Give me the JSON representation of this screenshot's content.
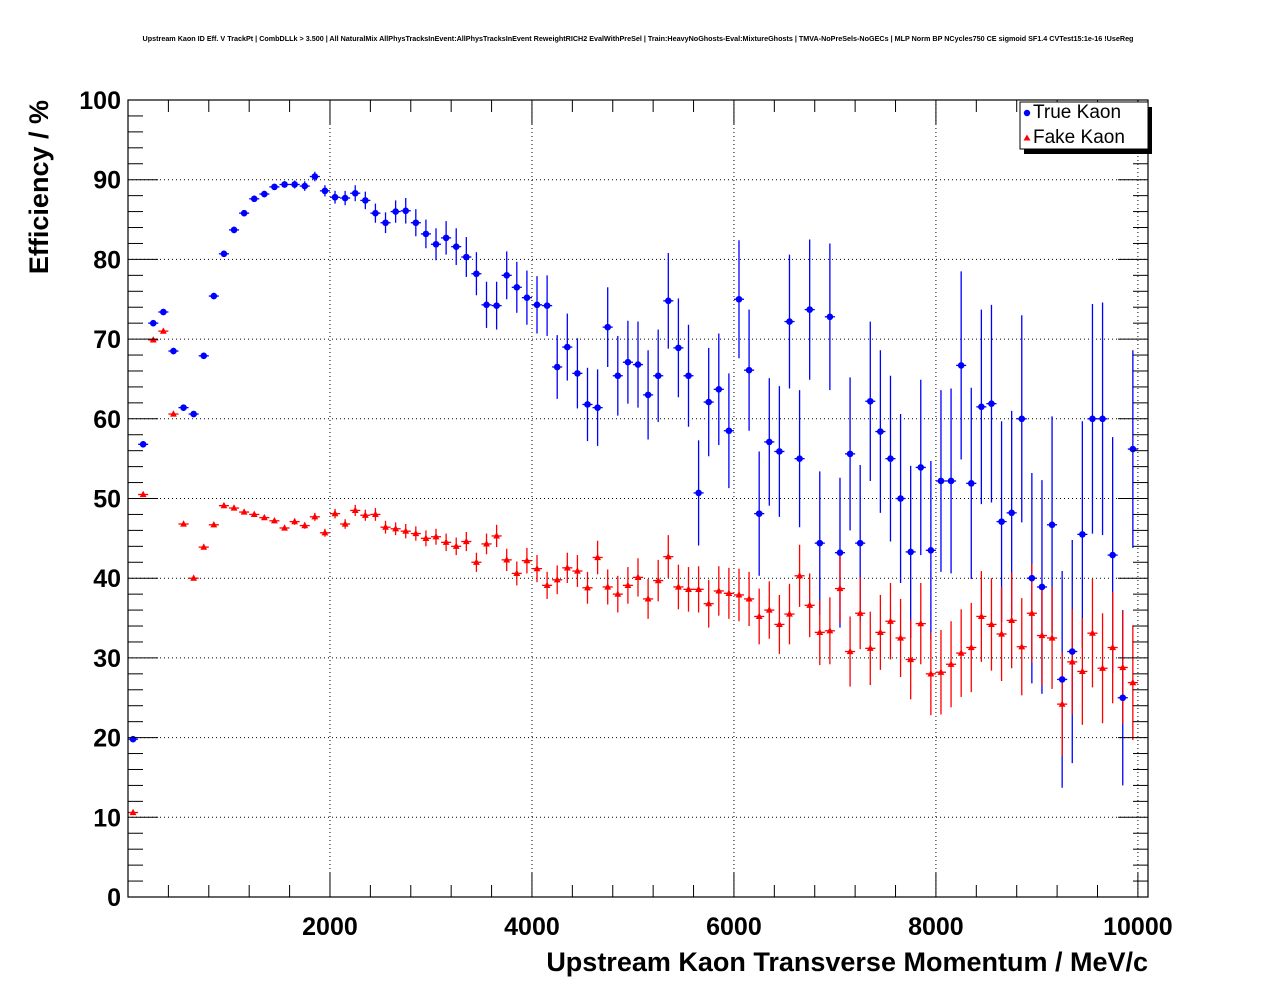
{
  "chart_data": {
    "type": "scatter",
    "title": "Upstream Kaon ID Eff. V TrackPt | CombDLLk > 3.500 | All NaturalMix AllPhysTracksInEvent:AllPhysTracksInEvent ReweightRICH2 EvalWithPreSel | Train:HeavyNoGhosts-Eval:MixtureGhosts | TMVA-NoPreSels-NoGECs | MLP Norm BP NCycles750 CE sigmoid SF1.4 CVTest15:1e-16 !UseReg",
    "xlabel": "Upstream Kaon Transverse Momentum / MeV/c",
    "ylabel": "Efficiency / %",
    "xlim": [
      0,
      10100
    ],
    "ylim": [
      0,
      100
    ],
    "x_ticks": [
      2000,
      4000,
      6000,
      8000,
      10000
    ],
    "y_ticks": [
      0,
      10,
      20,
      30,
      40,
      50,
      60,
      70,
      80,
      90,
      100
    ],
    "grid": true,
    "legend_position": "top-right",
    "series": [
      {
        "name": "True Kaon",
        "color": "#0000ff",
        "marker": "circle",
        "points": [
          [
            50,
            19.8,
            0.3
          ],
          [
            150,
            56.8,
            0.4
          ],
          [
            250,
            72.0,
            0.4
          ],
          [
            350,
            73.4,
            0.4
          ],
          [
            450,
            68.5,
            0.4
          ],
          [
            550,
            61.4,
            0.4
          ],
          [
            650,
            60.6,
            0.4
          ],
          [
            750,
            67.9,
            0.4
          ],
          [
            850,
            75.4,
            0.4
          ],
          [
            950,
            80.7,
            0.4
          ],
          [
            1050,
            83.7,
            0.4
          ],
          [
            1150,
            85.8,
            0.4
          ],
          [
            1250,
            87.6,
            0.4
          ],
          [
            1350,
            88.2,
            0.4
          ],
          [
            1450,
            89.1,
            0.4
          ],
          [
            1550,
            89.4,
            0.4
          ],
          [
            1650,
            89.4,
            0.5
          ],
          [
            1750,
            89.2,
            0.6
          ],
          [
            1850,
            90.4,
            0.6
          ],
          [
            1950,
            88.6,
            0.7
          ],
          [
            2050,
            87.8,
            0.8
          ],
          [
            2150,
            87.7,
            0.9
          ],
          [
            2250,
            88.3,
            1.0
          ],
          [
            2350,
            87.4,
            1.1
          ],
          [
            2450,
            85.8,
            1.2
          ],
          [
            2550,
            84.6,
            1.3
          ],
          [
            2650,
            86.0,
            1.4
          ],
          [
            2750,
            86.1,
            1.6
          ],
          [
            2850,
            84.6,
            1.7
          ],
          [
            2950,
            83.2,
            1.8
          ],
          [
            3050,
            81.9,
            2.0
          ],
          [
            3150,
            82.7,
            2.1
          ],
          [
            3250,
            81.6,
            2.3
          ],
          [
            3350,
            80.3,
            2.5
          ],
          [
            3450,
            78.2,
            2.7
          ],
          [
            3550,
            74.3,
            2.9
          ],
          [
            3650,
            74.2,
            3.0
          ],
          [
            3750,
            78.0,
            3.0
          ],
          [
            3850,
            76.5,
            3.2
          ],
          [
            3950,
            75.2,
            3.4
          ],
          [
            4050,
            74.3,
            3.6
          ],
          [
            4150,
            74.2,
            3.8
          ],
          [
            4250,
            66.5,
            4.0
          ],
          [
            4350,
            69.0,
            4.2
          ],
          [
            4450,
            65.7,
            4.4
          ],
          [
            4550,
            61.8,
            4.6
          ],
          [
            4650,
            61.4,
            4.8
          ],
          [
            4750,
            71.5,
            5.0
          ],
          [
            4850,
            65.4,
            5.0
          ],
          [
            4950,
            67.1,
            5.2
          ],
          [
            5050,
            66.8,
            5.4
          ],
          [
            5150,
            63.0,
            5.6
          ],
          [
            5250,
            65.4,
            5.8
          ],
          [
            5350,
            74.8,
            6.0
          ],
          [
            5450,
            68.9,
            6.2
          ],
          [
            5550,
            65.4,
            6.4
          ],
          [
            5650,
            50.7,
            6.6
          ],
          [
            5750,
            62.1,
            6.8
          ],
          [
            5850,
            63.7,
            7.0
          ],
          [
            5950,
            58.5,
            7.2
          ],
          [
            6050,
            75.0,
            7.4
          ],
          [
            6150,
            66.1,
            7.6
          ],
          [
            6250,
            48.1,
            7.8
          ],
          [
            6350,
            57.1,
            8.0
          ],
          [
            6450,
            55.9,
            8.2
          ],
          [
            6550,
            72.2,
            8.4
          ],
          [
            6650,
            55.0,
            8.6
          ],
          [
            6750,
            73.7,
            8.8
          ],
          [
            6850,
            44.4,
            9.0
          ],
          [
            6950,
            72.8,
            9.2
          ],
          [
            7050,
            43.2,
            9.4
          ],
          [
            7150,
            55.6,
            9.6
          ],
          [
            7250,
            44.4,
            9.8
          ],
          [
            7350,
            62.2,
            10.0
          ],
          [
            7450,
            58.4,
            10.2
          ],
          [
            7550,
            55.0,
            10.4
          ],
          [
            7650,
            50.0,
            10.6
          ],
          [
            7750,
            43.3,
            10.8
          ],
          [
            7850,
            53.9,
            11.0
          ],
          [
            7950,
            43.5,
            11.2
          ],
          [
            8050,
            52.2,
            11.4
          ],
          [
            8150,
            52.2,
            11.6
          ],
          [
            8250,
            66.7,
            11.8
          ],
          [
            8350,
            51.9,
            12.0
          ],
          [
            8450,
            61.5,
            12.2
          ],
          [
            8550,
            61.9,
            12.4
          ],
          [
            8650,
            47.1,
            12.6
          ],
          [
            8750,
            48.2,
            12.8
          ],
          [
            8850,
            60.0,
            13.0
          ],
          [
            8950,
            40.0,
            13.2
          ],
          [
            9050,
            38.9,
            13.4
          ],
          [
            9150,
            46.7,
            13.6
          ],
          [
            9250,
            27.3,
            13.6
          ],
          [
            9350,
            30.8,
            14.0
          ],
          [
            9450,
            45.5,
            14.2
          ],
          [
            9550,
            60.0,
            14.4
          ],
          [
            9650,
            60.0,
            14.6
          ],
          [
            9750,
            42.9,
            14.8
          ],
          [
            9850,
            25.0,
            11.0
          ],
          [
            9950,
            56.2,
            12.4
          ]
        ]
      },
      {
        "name": "Fake Kaon",
        "color": "#ff0000",
        "marker": "triangle",
        "points": [
          [
            50,
            10.6,
            0.2
          ],
          [
            150,
            50.5,
            0.3
          ],
          [
            250,
            69.9,
            0.3
          ],
          [
            350,
            71.0,
            0.3
          ],
          [
            450,
            60.6,
            0.3
          ],
          [
            550,
            46.8,
            0.3
          ],
          [
            650,
            40.0,
            0.3
          ],
          [
            750,
            43.9,
            0.3
          ],
          [
            850,
            46.7,
            0.3
          ],
          [
            950,
            49.1,
            0.3
          ],
          [
            1050,
            48.8,
            0.3
          ],
          [
            1150,
            48.3,
            0.3
          ],
          [
            1250,
            48.0,
            0.3
          ],
          [
            1350,
            47.6,
            0.3
          ],
          [
            1450,
            47.2,
            0.3
          ],
          [
            1550,
            46.3,
            0.3
          ],
          [
            1650,
            47.1,
            0.4
          ],
          [
            1750,
            46.6,
            0.4
          ],
          [
            1850,
            47.7,
            0.5
          ],
          [
            1950,
            45.7,
            0.5
          ],
          [
            2050,
            48.1,
            0.6
          ],
          [
            2150,
            46.8,
            0.6
          ],
          [
            2250,
            48.5,
            0.7
          ],
          [
            2350,
            47.9,
            0.7
          ],
          [
            2450,
            48.0,
            0.8
          ],
          [
            2550,
            46.4,
            0.8
          ],
          [
            2650,
            46.2,
            0.8
          ],
          [
            2750,
            45.9,
            0.9
          ],
          [
            2850,
            45.6,
            0.9
          ],
          [
            2950,
            45.0,
            1.0
          ],
          [
            3050,
            45.2,
            1.0
          ],
          [
            3150,
            44.5,
            1.1
          ],
          [
            3250,
            44.0,
            1.1
          ],
          [
            3350,
            44.6,
            1.2
          ],
          [
            3450,
            42.0,
            1.2
          ],
          [
            3550,
            44.3,
            1.3
          ],
          [
            3650,
            45.3,
            1.4
          ],
          [
            3750,
            42.3,
            1.4
          ],
          [
            3850,
            40.6,
            1.5
          ],
          [
            3950,
            42.2,
            1.6
          ],
          [
            4050,
            41.2,
            1.7
          ],
          [
            4150,
            39.1,
            1.7
          ],
          [
            4250,
            39.8,
            1.8
          ],
          [
            4350,
            41.3,
            1.9
          ],
          [
            4450,
            40.9,
            2.0
          ],
          [
            4550,
            38.8,
            2.0
          ],
          [
            4650,
            42.6,
            2.1
          ],
          [
            4750,
            38.9,
            2.2
          ],
          [
            4850,
            38.0,
            2.3
          ],
          [
            4950,
            39.1,
            2.3
          ],
          [
            5050,
            40.1,
            2.4
          ],
          [
            5150,
            37.4,
            2.5
          ],
          [
            5250,
            39.7,
            2.6
          ],
          [
            5350,
            42.7,
            2.7
          ],
          [
            5450,
            38.9,
            2.8
          ],
          [
            5550,
            38.6,
            2.8
          ],
          [
            5650,
            38.6,
            2.9
          ],
          [
            5750,
            36.8,
            3.0
          ],
          [
            5850,
            38.4,
            3.1
          ],
          [
            5950,
            38.1,
            3.2
          ],
          [
            6050,
            37.9,
            3.3
          ],
          [
            6150,
            37.4,
            3.4
          ],
          [
            6250,
            35.2,
            3.5
          ],
          [
            6350,
            36.0,
            3.6
          ],
          [
            6450,
            34.2,
            3.7
          ],
          [
            6550,
            35.5,
            3.8
          ],
          [
            6650,
            40.3,
            3.9
          ],
          [
            6750,
            36.6,
            4.0
          ],
          [
            6850,
            33.2,
            4.1
          ],
          [
            6950,
            33.4,
            4.2
          ],
          [
            7050,
            38.7,
            4.3
          ],
          [
            7150,
            30.8,
            4.4
          ],
          [
            7250,
            35.6,
            4.5
          ],
          [
            7350,
            31.2,
            4.6
          ],
          [
            7450,
            33.2,
            4.7
          ],
          [
            7550,
            34.6,
            4.8
          ],
          [
            7650,
            32.5,
            4.9
          ],
          [
            7750,
            29.8,
            5.0
          ],
          [
            7850,
            34.3,
            5.1
          ],
          [
            7950,
            28.0,
            5.2
          ],
          [
            8050,
            28.2,
            5.3
          ],
          [
            8150,
            29.2,
            5.4
          ],
          [
            8250,
            30.6,
            5.5
          ],
          [
            8350,
            31.3,
            5.6
          ],
          [
            8450,
            35.2,
            5.7
          ],
          [
            8550,
            34.2,
            5.8
          ],
          [
            8650,
            33.0,
            5.9
          ],
          [
            8750,
            34.7,
            6.0
          ],
          [
            8850,
            31.4,
            6.1
          ],
          [
            8950,
            35.6,
            6.2
          ],
          [
            9050,
            32.8,
            6.3
          ],
          [
            9150,
            32.5,
            6.4
          ],
          [
            9250,
            24.2,
            6.5
          ],
          [
            9350,
            29.5,
            6.6
          ],
          [
            9450,
            28.3,
            6.7
          ],
          [
            9550,
            33.1,
            6.8
          ],
          [
            9650,
            28.7,
            6.9
          ],
          [
            9750,
            31.3,
            7.0
          ],
          [
            9850,
            28.8,
            7.1
          ],
          [
            9950,
            26.9,
            7.2
          ]
        ]
      }
    ]
  }
}
